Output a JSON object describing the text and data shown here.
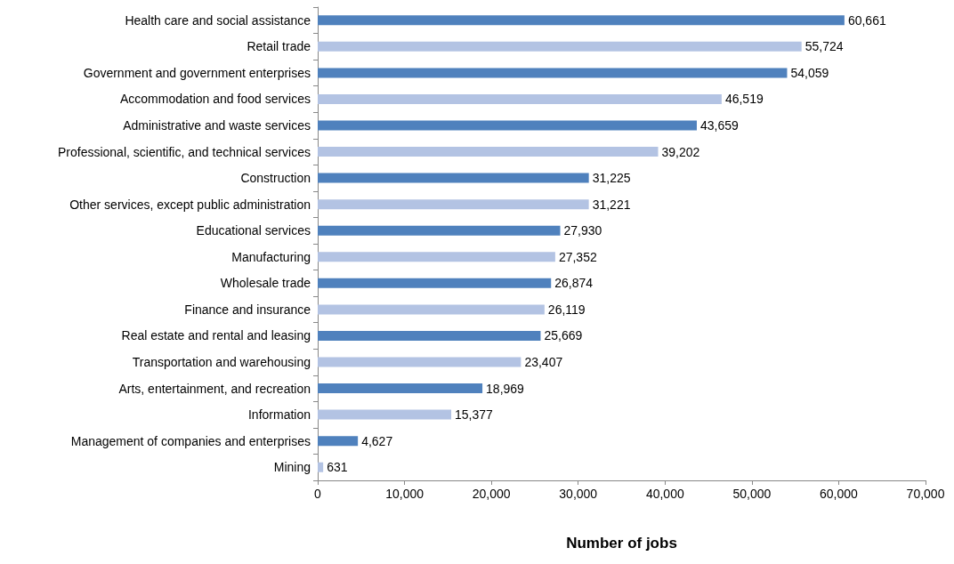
{
  "chart_data": {
    "type": "bar",
    "orientation": "horizontal",
    "xlabel": "Number of jobs",
    "categories": [
      "Health care and social assistance",
      "Retail trade",
      "Government and government enterprises",
      "Accommodation and food services",
      "Administrative and waste services",
      "Professional, scientific, and technical services",
      "Construction",
      "Other services, except public administration",
      "Educational services",
      "Manufacturing",
      "Wholesale trade",
      "Finance and insurance",
      "Real estate and rental and leasing",
      "Transportation and warehousing",
      "Arts, entertainment, and recreation",
      "Information",
      "Management of companies and enterprises",
      "Mining"
    ],
    "values": [
      60661,
      55724,
      54059,
      46519,
      43659,
      39202,
      31225,
      31221,
      27930,
      27352,
      26874,
      26119,
      25669,
      23407,
      18969,
      15377,
      4627,
      631
    ],
    "value_labels": [
      "60,661",
      "55,724",
      "54,059",
      "46,519",
      "43,659",
      "39,202",
      "31,225",
      "31,221",
      "27,930",
      "27,352",
      "26,874",
      "26,119",
      "25,669",
      "23,407",
      "18,969",
      "15,377",
      "4,627",
      "631"
    ],
    "colors": [
      "#4f81bd",
      "#b3c3e3",
      "#4f81bd",
      "#b3c3e3",
      "#4f81bd",
      "#b3c3e3",
      "#4f81bd",
      "#b3c3e3",
      "#4f81bd",
      "#b3c3e3",
      "#4f81bd",
      "#b3c3e3",
      "#4f81bd",
      "#b3c3e3",
      "#4f81bd",
      "#b3c3e3",
      "#4f81bd",
      "#b3c3e3"
    ],
    "xlim": [
      0,
      70000
    ],
    "xticks": [
      0,
      {
        "value": 10000,
        "label": "10,000"
      },
      {
        "value": 20000,
        "label": "20,000"
      },
      {
        "value": 30000,
        "label": "30,000"
      },
      {
        "value": 40000,
        "label": "40,000"
      },
      {
        "value": 50000,
        "label": "50,000"
      },
      {
        "value": 60000,
        "label": "60,000"
      },
      {
        "value": 70000,
        "label": "70,000"
      }
    ],
    "grid": false
  }
}
